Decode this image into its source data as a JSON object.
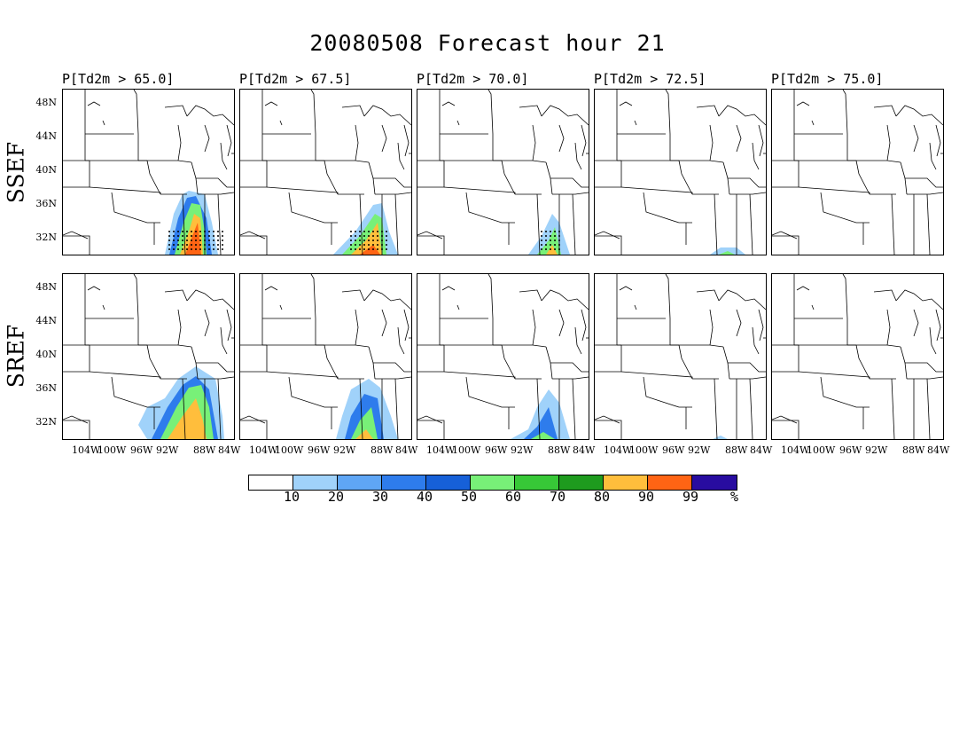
{
  "figure": {
    "title": "20080508 Forecast hour 21"
  },
  "columns": [
    {
      "label": "P[Td2m > 65.0]",
      "threshold": 65.0
    },
    {
      "label": "P[Td2m > 67.5]",
      "threshold": 67.5
    },
    {
      "label": "P[Td2m > 70.0]",
      "threshold": 70.0
    },
    {
      "label": "P[Td2m > 72.5]",
      "threshold": 72.5
    },
    {
      "label": "P[Td2m > 75.0]",
      "threshold": 75.0
    }
  ],
  "rows": [
    {
      "label": "SSEF"
    },
    {
      "label": "SREF"
    }
  ],
  "lat_labels": [
    "48N",
    "44N",
    "40N",
    "36N",
    "32N"
  ],
  "lon_labels": [
    "104W",
    "100W",
    "96W",
    "92W",
    "88W",
    "84W"
  ],
  "colorbar": {
    "colors": [
      "#ffffff",
      "#a0d2fa",
      "#5fa6f5",
      "#2e7cec",
      "#1660d8",
      "#78f078",
      "#37c837",
      "#1e9b1e",
      "#ffbe3c",
      "#ff6414",
      "#280ca0"
    ],
    "labels": [
      "10",
      "20",
      "30",
      "40",
      "50",
      "60",
      "70",
      "80",
      "90",
      "99",
      "%"
    ]
  },
  "map_colors": {
    "boundary": "#000000",
    "contour": "#333333",
    "stipple": "#000000"
  }
}
